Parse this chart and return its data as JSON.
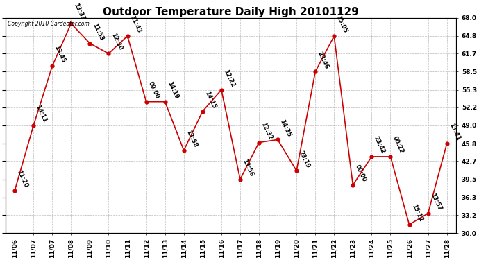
{
  "title": "Outdoor Temperature Daily High 20101129",
  "copyright": "Copyright 2010 Cardeater.com",
  "x_tick_labels": [
    "11/06",
    "11/07",
    "11/07",
    "11/08",
    "11/09",
    "11/10",
    "11/11",
    "11/12",
    "11/13",
    "11/14",
    "11/15",
    "11/16",
    "11/17",
    "11/18",
    "11/19",
    "11/20",
    "11/21",
    "11/22",
    "11/23",
    "11/24",
    "11/25",
    "11/26",
    "11/27",
    "11/28"
  ],
  "values": [
    37.5,
    49.0,
    59.5,
    67.0,
    63.5,
    61.7,
    64.8,
    53.2,
    53.2,
    44.6,
    51.5,
    55.3,
    39.5,
    46.0,
    46.5,
    41.0,
    58.5,
    64.8,
    38.5,
    43.5,
    43.5,
    31.5,
    33.5,
    45.8
  ],
  "labels": [
    "11:20",
    "14:11",
    "13:45",
    "13:37",
    "11:53",
    "12:30",
    "11:43",
    "00:00",
    "14:19",
    "13:58",
    "14:15",
    "12:22",
    "13:56",
    "12:32",
    "14:35",
    "23:19",
    "23:46",
    "15:05",
    "00:00",
    "23:42",
    "00:22",
    "15:12",
    "13:57",
    "13:41"
  ],
  "ylim": [
    30.0,
    68.0
  ],
  "yticks": [
    30.0,
    33.2,
    36.3,
    39.5,
    42.7,
    45.8,
    49.0,
    52.2,
    55.3,
    58.5,
    61.7,
    64.8,
    68.0
  ],
  "ytick_labels": [
    "30.0",
    "33.2",
    "36.3",
    "39.5",
    "42.7",
    "45.8",
    "49.0",
    "52.2",
    "55.3",
    "58.5",
    "61.7",
    "64.8",
    "68.0"
  ],
  "line_color": "#cc0000",
  "marker_color": "#cc0000",
  "bg_color": "#ffffff",
  "grid_color": "#bbbbbb",
  "title_fontsize": 11,
  "label_fontsize": 6,
  "tick_fontsize": 6.5
}
